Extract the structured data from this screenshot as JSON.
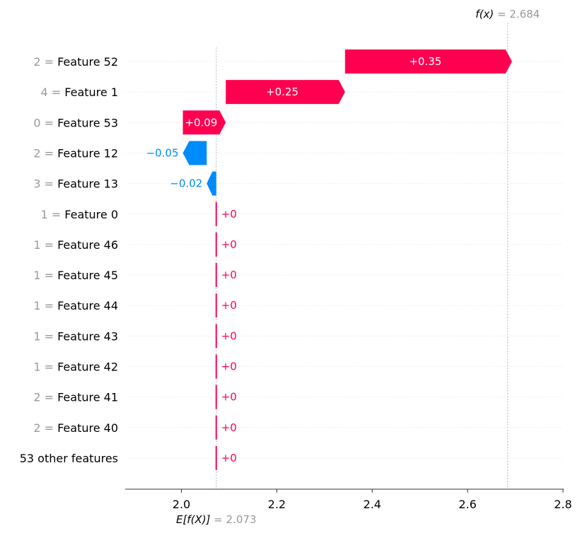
{
  "chart_data": {
    "type": "waterfall",
    "base_value": 2.073,
    "final_value": 2.684,
    "base_label": {
      "prefix": "E[f(X)]",
      "value_text": "= 2.073"
    },
    "final_label": {
      "prefix": "f(x)",
      "value_text": "= 2.684"
    },
    "xlim": [
      1.875,
      2.8
    ],
    "xticks": [
      2.0,
      2.2,
      2.4,
      2.6,
      2.8
    ],
    "xtick_labels": [
      "2.0",
      "2.2",
      "2.4",
      "2.6",
      "2.8"
    ],
    "features": [
      {
        "value": "2",
        "name": "Feature 52",
        "contribution": 0.35,
        "label": "+0.35"
      },
      {
        "value": "4",
        "name": "Feature 1",
        "contribution": 0.25,
        "label": "+0.25"
      },
      {
        "value": "0",
        "name": "Feature 53",
        "contribution": 0.09,
        "label": "+0.09"
      },
      {
        "value": "2",
        "name": "Feature 12",
        "contribution": -0.05,
        "label": "−0.05"
      },
      {
        "value": "3",
        "name": "Feature 13",
        "contribution": -0.02,
        "label": "−0.02"
      },
      {
        "value": "1",
        "name": "Feature 0",
        "contribution": 0,
        "label": "+0"
      },
      {
        "value": "1",
        "name": "Feature 46",
        "contribution": 0,
        "label": "+0"
      },
      {
        "value": "1",
        "name": "Feature 45",
        "contribution": 0,
        "label": "+0"
      },
      {
        "value": "1",
        "name": "Feature 44",
        "contribution": 0,
        "label": "+0"
      },
      {
        "value": "1",
        "name": "Feature 43",
        "contribution": 0,
        "label": "+0"
      },
      {
        "value": "1",
        "name": "Feature 42",
        "contribution": 0,
        "label": "+0"
      },
      {
        "value": "2",
        "name": "Feature 41",
        "contribution": 0,
        "label": "+0"
      },
      {
        "value": "2",
        "name": "Feature 40",
        "contribution": 0,
        "label": "+0"
      },
      {
        "value": "",
        "name": "53 other features",
        "contribution": 0,
        "label": "+0"
      }
    ],
    "colors": {
      "positive": "#ff0051",
      "negative": "#008bfb",
      "feature_value": "#999999",
      "feature_name": "#000000",
      "annotation_value": "#999999",
      "grid": "#dddddd",
      "axis": "#333333"
    }
  }
}
